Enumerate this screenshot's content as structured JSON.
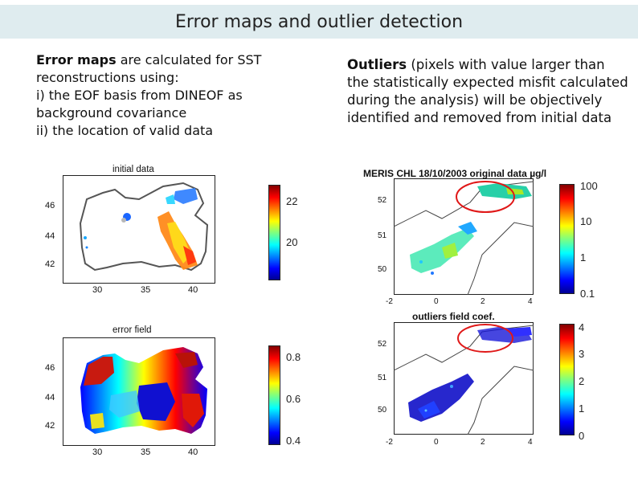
{
  "slide": {
    "title": "Error maps and outlier detection",
    "left_text": {
      "bold": "Error  maps",
      "rest": " are calculated for SST reconstructions using:",
      "line2": "i) the EOF basis from DINEOF as background covariance",
      "line3": "ii) the location of valid data"
    },
    "right_text": {
      "bold": "Outliers",
      "rest": " (pixels with value larger than the statistically expected misfit calculated during the analysis) will be objectively identified and removed from initial data"
    }
  },
  "maps": {
    "initial": {
      "title": "initial data",
      "y_ticks": [
        "46",
        "44",
        "42"
      ],
      "x_ticks": [
        "30",
        "35",
        "40"
      ],
      "colorbar_ticks": [
        "22",
        "20"
      ]
    },
    "error": {
      "title": "error field",
      "y_ticks": [
        "46",
        "44",
        "42"
      ],
      "x_ticks": [
        "30",
        "35",
        "40"
      ],
      "colorbar_ticks": [
        "0.8",
        "0.6",
        "0.4"
      ]
    },
    "meris": {
      "title": "MERIS CHL 18/10/2003 original data µg/l",
      "y_ticks": [
        "52",
        "51",
        "50"
      ],
      "x_ticks": [
        "-2",
        "0",
        "2",
        "4"
      ],
      "colorbar_ticks": [
        "100",
        "10",
        "1",
        "0.1"
      ]
    },
    "outliers": {
      "title": "outliers field coef.",
      "y_ticks": [
        "52",
        "51",
        "50"
      ],
      "x_ticks": [
        "-2",
        "0",
        "2",
        "4"
      ],
      "colorbar_ticks": [
        "4",
        "3",
        "2",
        "1",
        "0"
      ]
    }
  },
  "colors": {
    "title_band": "#dfecef",
    "outlier_circle": "#e01818"
  }
}
